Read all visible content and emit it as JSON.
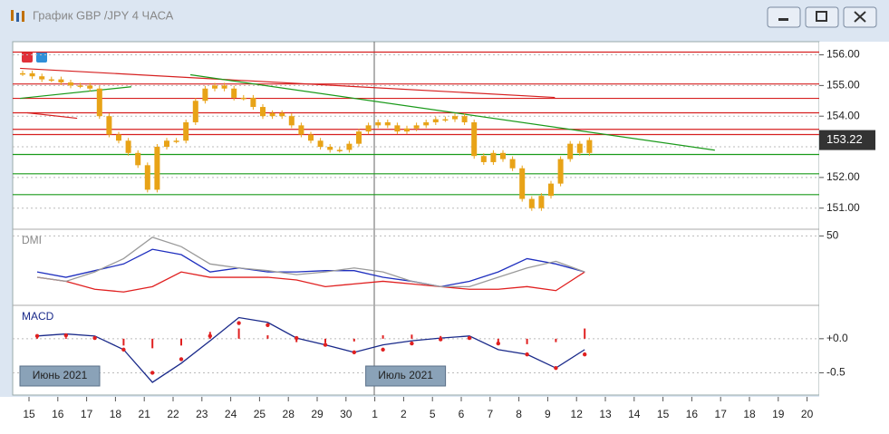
{
  "window": {
    "title": "График GBP /JPY  4 ЧАСА"
  },
  "chart_data": [
    {
      "type": "candlestick",
      "ylim": [
        150.4,
        156.4
      ],
      "yticks": [
        {
          "value": 151,
          "label": "151.00"
        },
        {
          "value": 152,
          "label": "152.00"
        },
        {
          "value": 153,
          "label": "153.00"
        },
        {
          "value": 154,
          "label": "154.00"
        },
        {
          "value": 155,
          "label": "155.00"
        },
        {
          "value": 156,
          "label": "156.00"
        }
      ],
      "grid": true,
      "color": "#e8a317",
      "last_price": 153.22,
      "values": [
        155.4,
        155.3,
        155.2,
        155.2,
        155.1,
        155.0,
        155.0,
        154.9,
        154.0,
        153.4,
        153.2,
        152.8,
        152.4,
        151.6,
        153.0,
        153.2,
        153.2,
        153.8,
        154.5,
        154.9,
        155.0,
        154.9,
        154.6,
        154.6,
        154.3,
        154.0,
        154.1,
        154.0,
        153.7,
        153.4,
        153.2,
        153.0,
        152.9,
        152.9,
        153.1,
        153.5,
        153.7,
        153.8,
        153.7,
        153.5,
        153.6,
        153.7,
        153.8,
        153.9,
        153.9,
        154.0,
        153.8,
        152.7,
        152.5,
        152.8,
        152.6,
        152.3,
        151.3,
        151.0,
        151.4,
        151.8,
        152.6,
        153.1,
        152.8,
        153.22
      ],
      "levels": [
        {
          "value": 156.09,
          "color": "#d62020"
        },
        {
          "value": 155.05,
          "color": "#d62020"
        },
        {
          "value": 154.58,
          "color": "#d62020"
        },
        {
          "value": 154.11,
          "color": "#d62020"
        },
        {
          "value": 153.57,
          "color": "#d62020"
        },
        {
          "value": 153.4,
          "color": "#d62020"
        },
        {
          "value": 152.75,
          "color": "#1a9a1a"
        },
        {
          "value": 152.12,
          "color": "#1a9a1a"
        },
        {
          "value": 151.44,
          "color": "#1a9a1a"
        }
      ],
      "trendlines": [
        {
          "x": [
            -0.31,
            18.25
          ],
          "y": [
            155.56,
            154.61
          ],
          "color": "#d62020"
        },
        {
          "x": [
            5.6,
            23.8
          ],
          "y": [
            155.35,
            152.89
          ],
          "color": "#1a9a1a"
        },
        {
          "x": [
            -0.31,
            3.55
          ],
          "y": [
            154.58,
            154.96
          ],
          "color": "#1a9a1a"
        },
        {
          "x": [
            -0.06,
            1.67
          ],
          "y": [
            154.11,
            153.93
          ],
          "color": "#d62020"
        }
      ]
    },
    {
      "type": "line",
      "title": "DMI",
      "ylim": [
        0,
        53
      ],
      "yticks": [
        50
      ],
      "grid": true,
      "series": [
        {
          "color": "#1f2fbf",
          "values": [
            23,
            19,
            24,
            29,
            40,
            36,
            23,
            26,
            23,
            23,
            24,
            24,
            19,
            16,
            12,
            16,
            23,
            33,
            29,
            23
          ]
        },
        {
          "color": "#e02020",
          "values": [
            19,
            16,
            10,
            8,
            12,
            23,
            19,
            19,
            19,
            17,
            12,
            14,
            16,
            14,
            12,
            10,
            10,
            12,
            9,
            23
          ]
        },
        {
          "color": "#9a9a9a",
          "values": [
            19,
            16,
            23,
            33,
            49,
            42,
            29,
            26,
            24,
            21,
            23,
            26,
            23,
            16,
            12,
            12,
            19,
            26,
            31,
            23
          ]
        }
      ]
    },
    {
      "type": "macd",
      "title": "MACD",
      "ylim": [
        -0.8,
        0.45
      ],
      "yticks": [
        {
          "value": 0,
          "label": "+0.0"
        },
        {
          "value": -0.5,
          "label": "-0.5"
        }
      ],
      "grid": true,
      "xticks": [
        "15",
        "16",
        "17",
        "18",
        "21",
        "22",
        "23",
        "24",
        "25",
        "28",
        "29",
        "30",
        "1",
        "2",
        "5",
        "6",
        "7",
        "8",
        "9",
        "12",
        "13",
        "14",
        "15",
        "16",
        "17",
        "18",
        "19",
        "20"
      ],
      "period_labels": [
        "Июнь 2021",
        "Июль 2021"
      ],
      "series": [
        {
          "color": "#1a2a8a",
          "values": [
            0.04,
            0.07,
            0.04,
            -0.16,
            -0.64,
            -0.36,
            -0.03,
            0.31,
            0.24,
            0.01,
            -0.09,
            -0.2,
            -0.09,
            -0.03,
            0.01,
            0.04,
            -0.16,
            -0.23,
            -0.43,
            -0.16
          ]
        },
        {
          "color": "#e02020",
          "values": [
            0.04,
            0.05,
            0.01,
            -0.16,
            -0.5,
            -0.3,
            0.04,
            0.23,
            0.2,
            0.01,
            -0.09,
            -0.2,
            -0.16,
            -0.07,
            -0.01,
            0.01,
            -0.07,
            -0.23,
            -0.43,
            -0.23
          ]
        }
      ],
      "histogram": {
        "color": "#e02020",
        "values": [
          0.02,
          0.02,
          0.03,
          -0.1,
          -0.14,
          -0.1,
          0.1,
          0.15,
          0.05,
          -0.05,
          -0.06,
          -0.04,
          0.05,
          0.06,
          0.04,
          0.02,
          -0.06,
          -0.08,
          -0.05,
          0.15
        ]
      }
    }
  ]
}
